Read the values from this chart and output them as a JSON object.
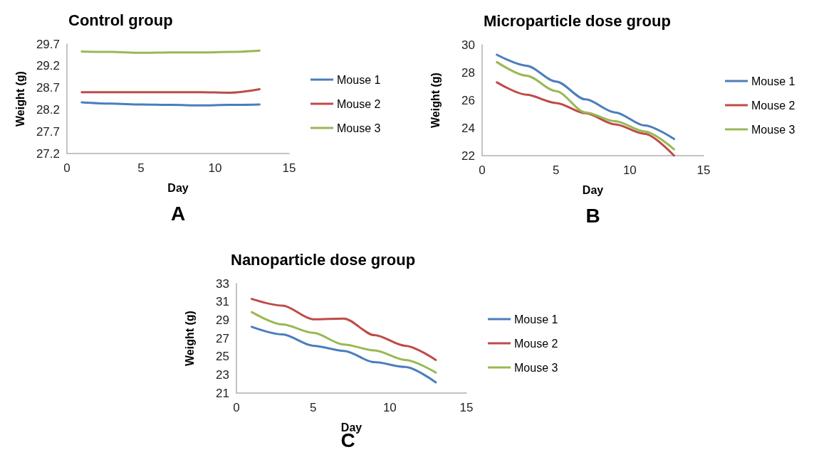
{
  "chart_data": [
    {
      "type": "line",
      "title": "Control group",
      "xlabel": "Day",
      "ylabel": "Weight (g)",
      "annotations": [
        "A"
      ],
      "x": [
        1,
        3,
        5,
        7,
        9,
        11,
        13
      ],
      "xlim": [
        0,
        15
      ],
      "xticks": [
        0,
        5,
        10,
        15
      ],
      "ylim": [
        27.2,
        29.7
      ],
      "yticks": [
        27.2,
        27.7,
        28.2,
        28.7,
        29.2,
        29.7
      ],
      "grid": false,
      "legend": "right",
      "marker": "none",
      "line_style": "solid",
      "series": [
        {
          "name": "Mouse 1",
          "color": "#4a7ebb",
          "values": [
            28.37,
            28.34,
            28.32,
            28.31,
            28.3,
            28.31,
            28.32
          ]
        },
        {
          "name": "Mouse 2",
          "color": "#be4b48",
          "values": [
            28.6,
            28.6,
            28.6,
            28.6,
            28.6,
            28.59,
            28.67
          ]
        },
        {
          "name": "Mouse 3",
          "color": "#98b954",
          "values": [
            29.53,
            29.52,
            29.5,
            29.51,
            29.51,
            29.52,
            29.55
          ]
        }
      ]
    },
    {
      "type": "line",
      "title": "Microparticle dose group",
      "xlabel": "Day",
      "ylabel": "Weight (g)",
      "annotations": [
        "B"
      ],
      "x": [
        1,
        3,
        5,
        7,
        9,
        11,
        13
      ],
      "xlim": [
        0,
        15
      ],
      "xticks": [
        0,
        5,
        10,
        15
      ],
      "ylim": [
        22,
        30
      ],
      "yticks": [
        22,
        24,
        26,
        28,
        30
      ],
      "grid": false,
      "legend": "right",
      "marker": "none",
      "line_style": "solid",
      "series": [
        {
          "name": "Mouse 1",
          "color": "#4a7ebb",
          "values": [
            29.28,
            28.49,
            27.35,
            26.06,
            25.12,
            24.18,
            23.2
          ]
        },
        {
          "name": "Mouse 2",
          "color": "#be4b48",
          "values": [
            27.29,
            26.4,
            25.8,
            25.06,
            24.26,
            23.58,
            22.0
          ]
        },
        {
          "name": "Mouse 3",
          "color": "#98b954",
          "values": [
            28.75,
            27.77,
            26.66,
            25.12,
            24.49,
            23.75,
            22.46
          ]
        }
      ]
    },
    {
      "type": "line",
      "title": "Nanoparticle dose group",
      "xlabel": "Day",
      "ylabel": "Weight (g)",
      "annotations": [
        "C"
      ],
      "x": [
        1,
        3,
        5,
        7,
        9,
        11,
        13
      ],
      "xlim": [
        0,
        15
      ],
      "xticks": [
        0,
        5,
        10,
        15
      ],
      "ylim": [
        21,
        33
      ],
      "yticks": [
        21,
        23,
        25,
        27,
        29,
        31,
        33
      ],
      "grid": false,
      "legend": "right",
      "marker": "none",
      "line_style": "solid",
      "series": [
        {
          "name": "Mouse 1",
          "color": "#4a7ebb",
          "values": [
            28.26,
            27.43,
            26.19,
            25.62,
            24.38,
            23.86,
            22.17
          ]
        },
        {
          "name": "Mouse 2",
          "color": "#be4b48",
          "values": [
            31.32,
            30.59,
            29.09,
            29.17,
            27.35,
            26.19,
            24.63
          ]
        },
        {
          "name": "Mouse 3",
          "color": "#98b954",
          "values": [
            29.87,
            28.52,
            27.61,
            26.32,
            25.67,
            24.63,
            23.25
          ]
        }
      ]
    }
  ]
}
